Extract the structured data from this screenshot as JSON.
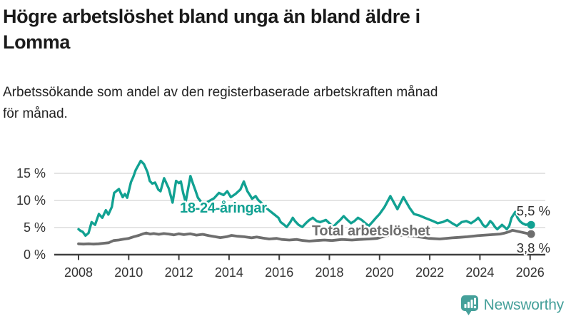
{
  "header": {
    "title_lines": [
      "Högre arbetslöshet bland unga än bland äldre i",
      "Lomma"
    ],
    "subtitle_lines": [
      "Arbetssökande som andel av den registerbaserade arbetskraften månad",
      "för månad."
    ]
  },
  "branding": {
    "name": "Newsworthy",
    "icon": "bar-chart-speech-bubble-icon",
    "color": "#45a09a"
  },
  "colors": {
    "youth_line": "#11a192",
    "total_line": "#6e6e6e",
    "grid": "#dcdcdc",
    "axis": "#3f3f3f",
    "tick_text": "#333333",
    "value_text": "#2e2e2e",
    "background": "#ffffff"
  },
  "chart_data": {
    "type": "line",
    "title": "Högre arbetslöshet bland unga än bland äldre i Lomma",
    "subtitle": "Arbetssökande som andel av den registerbaserade arbetskraften månad för månad.",
    "x_unit": "year (monthly observations)",
    "xlim": [
      2007.9,
      2026.6
    ],
    "ylim": [
      0,
      18
    ],
    "grid": "horizontal",
    "legend_position": "inline-labels",
    "x_tick_labels": [
      "2008",
      "2010",
      "2012",
      "2014",
      "2016",
      "2018",
      "2020",
      "2022",
      "2024",
      "2026"
    ],
    "x_tick_values": [
      2008,
      2010,
      2012,
      2014,
      2016,
      2018,
      2020,
      2022,
      2024,
      2026
    ],
    "y_tick_labels": [
      "0 %",
      "5 %",
      "10 %",
      "15 %"
    ],
    "y_tick_values": [
      0,
      5,
      10,
      15
    ],
    "series": [
      {
        "name": "18-24-åringar",
        "color": "#11a192",
        "end_label": "5,5 %",
        "end_value": 5.5,
        "points": [
          [
            2008.0,
            4.7
          ],
          [
            2008.08,
            4.4
          ],
          [
            2008.17,
            4.2
          ],
          [
            2008.28,
            3.5
          ],
          [
            2008.4,
            4.0
          ],
          [
            2008.52,
            6.0
          ],
          [
            2008.66,
            5.5
          ],
          [
            2008.81,
            7.5
          ],
          [
            2008.95,
            6.8
          ],
          [
            2009.09,
            8.2
          ],
          [
            2009.19,
            7.4
          ],
          [
            2009.33,
            8.8
          ],
          [
            2009.42,
            11.4
          ],
          [
            2009.61,
            12.1
          ],
          [
            2009.76,
            10.6
          ],
          [
            2009.85,
            11.2
          ],
          [
            2009.94,
            10.5
          ],
          [
            2010.09,
            13.4
          ],
          [
            2010.18,
            14.3
          ],
          [
            2010.28,
            15.6
          ],
          [
            2010.42,
            16.8
          ],
          [
            2010.48,
            17.3
          ],
          [
            2010.61,
            16.7
          ],
          [
            2010.75,
            15.2
          ],
          [
            2010.84,
            13.6
          ],
          [
            2010.94,
            13.1
          ],
          [
            2011.05,
            13.3
          ],
          [
            2011.18,
            12.0
          ],
          [
            2011.27,
            11.7
          ],
          [
            2011.41,
            14.1
          ],
          [
            2011.51,
            13.1
          ],
          [
            2011.6,
            12.2
          ],
          [
            2011.75,
            9.6
          ],
          [
            2011.89,
            13.6
          ],
          [
            2012.0,
            13.2
          ],
          [
            2012.08,
            13.5
          ],
          [
            2012.17,
            11.4
          ],
          [
            2012.27,
            9.7
          ],
          [
            2012.46,
            14.5
          ],
          [
            2012.57,
            13.0
          ],
          [
            2012.65,
            12.0
          ],
          [
            2012.76,
            10.5
          ],
          [
            2012.86,
            9.9
          ],
          [
            2012.95,
            9.3
          ],
          [
            2013.1,
            9.6
          ],
          [
            2013.25,
            10.0
          ],
          [
            2013.4,
            10.4
          ],
          [
            2013.6,
            11.4
          ],
          [
            2013.78,
            11.0
          ],
          [
            2013.93,
            11.7
          ],
          [
            2014.07,
            10.6
          ],
          [
            2014.26,
            11.2
          ],
          [
            2014.45,
            12.0
          ],
          [
            2014.59,
            13.5
          ],
          [
            2014.73,
            11.7
          ],
          [
            2014.83,
            11.0
          ],
          [
            2014.92,
            10.3
          ],
          [
            2015.06,
            10.8
          ],
          [
            2015.16,
            10.1
          ],
          [
            2015.3,
            9.5
          ],
          [
            2015.44,
            8.8
          ],
          [
            2015.59,
            8.2
          ],
          [
            2015.78,
            7.5
          ],
          [
            2015.97,
            6.8
          ],
          [
            2016.06,
            6.0
          ],
          [
            2016.2,
            5.5
          ],
          [
            2016.3,
            5.1
          ],
          [
            2016.44,
            6.0
          ],
          [
            2016.54,
            6.8
          ],
          [
            2016.63,
            6.2
          ],
          [
            2016.77,
            5.5
          ],
          [
            2016.92,
            5.1
          ],
          [
            2017.06,
            5.8
          ],
          [
            2017.2,
            6.4
          ],
          [
            2017.34,
            6.8
          ],
          [
            2017.49,
            6.2
          ],
          [
            2017.63,
            6.0
          ],
          [
            2017.86,
            6.4
          ],
          [
            2018.0,
            5.8
          ],
          [
            2018.15,
            5.1
          ],
          [
            2018.29,
            5.8
          ],
          [
            2018.43,
            6.4
          ],
          [
            2018.57,
            7.1
          ],
          [
            2018.72,
            6.4
          ],
          [
            2018.86,
            5.8
          ],
          [
            2019.0,
            6.2
          ],
          [
            2019.14,
            6.8
          ],
          [
            2019.29,
            6.4
          ],
          [
            2019.43,
            5.8
          ],
          [
            2019.57,
            5.3
          ],
          [
            2019.71,
            6.0
          ],
          [
            2019.86,
            6.8
          ],
          [
            2020.0,
            7.5
          ],
          [
            2020.2,
            8.8
          ],
          [
            2020.43,
            10.8
          ],
          [
            2020.71,
            8.4
          ],
          [
            2020.95,
            10.6
          ],
          [
            2021.2,
            8.6
          ],
          [
            2021.37,
            7.5
          ],
          [
            2021.6,
            7.2
          ],
          [
            2021.8,
            6.8
          ],
          [
            2022.13,
            6.2
          ],
          [
            2022.32,
            5.8
          ],
          [
            2022.51,
            6.0
          ],
          [
            2022.7,
            6.4
          ],
          [
            2022.89,
            5.8
          ],
          [
            2023.08,
            5.3
          ],
          [
            2023.27,
            6.0
          ],
          [
            2023.46,
            6.2
          ],
          [
            2023.65,
            5.8
          ],
          [
            2023.84,
            6.4
          ],
          [
            2023.93,
            6.8
          ],
          [
            2024.03,
            6.2
          ],
          [
            2024.12,
            5.5
          ],
          [
            2024.22,
            5.1
          ],
          [
            2024.31,
            5.5
          ],
          [
            2024.41,
            6.2
          ],
          [
            2024.5,
            5.8
          ],
          [
            2024.6,
            5.1
          ],
          [
            2024.69,
            4.7
          ],
          [
            2024.79,
            5.1
          ],
          [
            2024.88,
            5.5
          ],
          [
            2024.98,
            5.1
          ],
          [
            2025.07,
            4.7
          ],
          [
            2025.17,
            5.3
          ],
          [
            2025.26,
            6.8
          ],
          [
            2025.41,
            7.9
          ],
          [
            2025.5,
            6.8
          ],
          [
            2025.59,
            6.2
          ],
          [
            2025.69,
            5.8
          ],
          [
            2025.83,
            5.5
          ],
          [
            2025.92,
            5.6
          ],
          [
            2026.04,
            5.5
          ]
        ]
      },
      {
        "name": "Total arbetslöshet",
        "color": "#6e6e6e",
        "end_label": "3,8 %",
        "end_value": 3.8,
        "points": [
          [
            2008.0,
            2.0
          ],
          [
            2008.2,
            1.95
          ],
          [
            2008.4,
            2.0
          ],
          [
            2008.6,
            1.95
          ],
          [
            2008.8,
            2.0
          ],
          [
            2009.0,
            2.1
          ],
          [
            2009.2,
            2.2
          ],
          [
            2009.4,
            2.6
          ],
          [
            2009.6,
            2.7
          ],
          [
            2009.8,
            2.85
          ],
          [
            2010.0,
            3.0
          ],
          [
            2010.2,
            3.3
          ],
          [
            2010.4,
            3.55
          ],
          [
            2010.55,
            3.8
          ],
          [
            2010.7,
            4.0
          ],
          [
            2010.85,
            3.8
          ],
          [
            2011.0,
            3.9
          ],
          [
            2011.2,
            3.75
          ],
          [
            2011.4,
            3.9
          ],
          [
            2011.6,
            3.8
          ],
          [
            2011.8,
            3.65
          ],
          [
            2012.0,
            3.85
          ],
          [
            2012.2,
            3.7
          ],
          [
            2012.45,
            3.85
          ],
          [
            2012.7,
            3.6
          ],
          [
            2012.95,
            3.75
          ],
          [
            2013.2,
            3.5
          ],
          [
            2013.45,
            3.3
          ],
          [
            2013.65,
            3.15
          ],
          [
            2013.9,
            3.3
          ],
          [
            2014.1,
            3.55
          ],
          [
            2014.35,
            3.4
          ],
          [
            2014.6,
            3.3
          ],
          [
            2014.9,
            3.1
          ],
          [
            2015.1,
            3.25
          ],
          [
            2015.35,
            3.05
          ],
          [
            2015.6,
            2.9
          ],
          [
            2015.9,
            3.0
          ],
          [
            2016.1,
            2.8
          ],
          [
            2016.4,
            2.7
          ],
          [
            2016.7,
            2.8
          ],
          [
            2016.95,
            2.6
          ],
          [
            2017.2,
            2.5
          ],
          [
            2017.5,
            2.6
          ],
          [
            2017.8,
            2.7
          ],
          [
            2018.1,
            2.6
          ],
          [
            2018.5,
            2.8
          ],
          [
            2018.9,
            2.7
          ],
          [
            2019.2,
            2.8
          ],
          [
            2019.6,
            2.9
          ],
          [
            2019.9,
            3.0
          ],
          [
            2020.2,
            3.4
          ],
          [
            2020.5,
            3.7
          ],
          [
            2020.8,
            3.6
          ],
          [
            2021.1,
            3.5
          ],
          [
            2021.4,
            3.4
          ],
          [
            2021.7,
            3.2
          ],
          [
            2022.0,
            3.0
          ],
          [
            2022.4,
            2.9
          ],
          [
            2022.9,
            3.1
          ],
          [
            2023.2,
            3.2
          ],
          [
            2023.5,
            3.3
          ],
          [
            2023.9,
            3.5
          ],
          [
            2024.2,
            3.6
          ],
          [
            2024.5,
            3.7
          ],
          [
            2024.8,
            3.8
          ],
          [
            2025.0,
            4.0
          ],
          [
            2025.15,
            4.2
          ],
          [
            2025.3,
            4.5
          ],
          [
            2025.5,
            4.3
          ],
          [
            2025.7,
            4.1
          ],
          [
            2025.9,
            3.9
          ],
          [
            2026.04,
            3.8
          ]
        ]
      }
    ]
  }
}
